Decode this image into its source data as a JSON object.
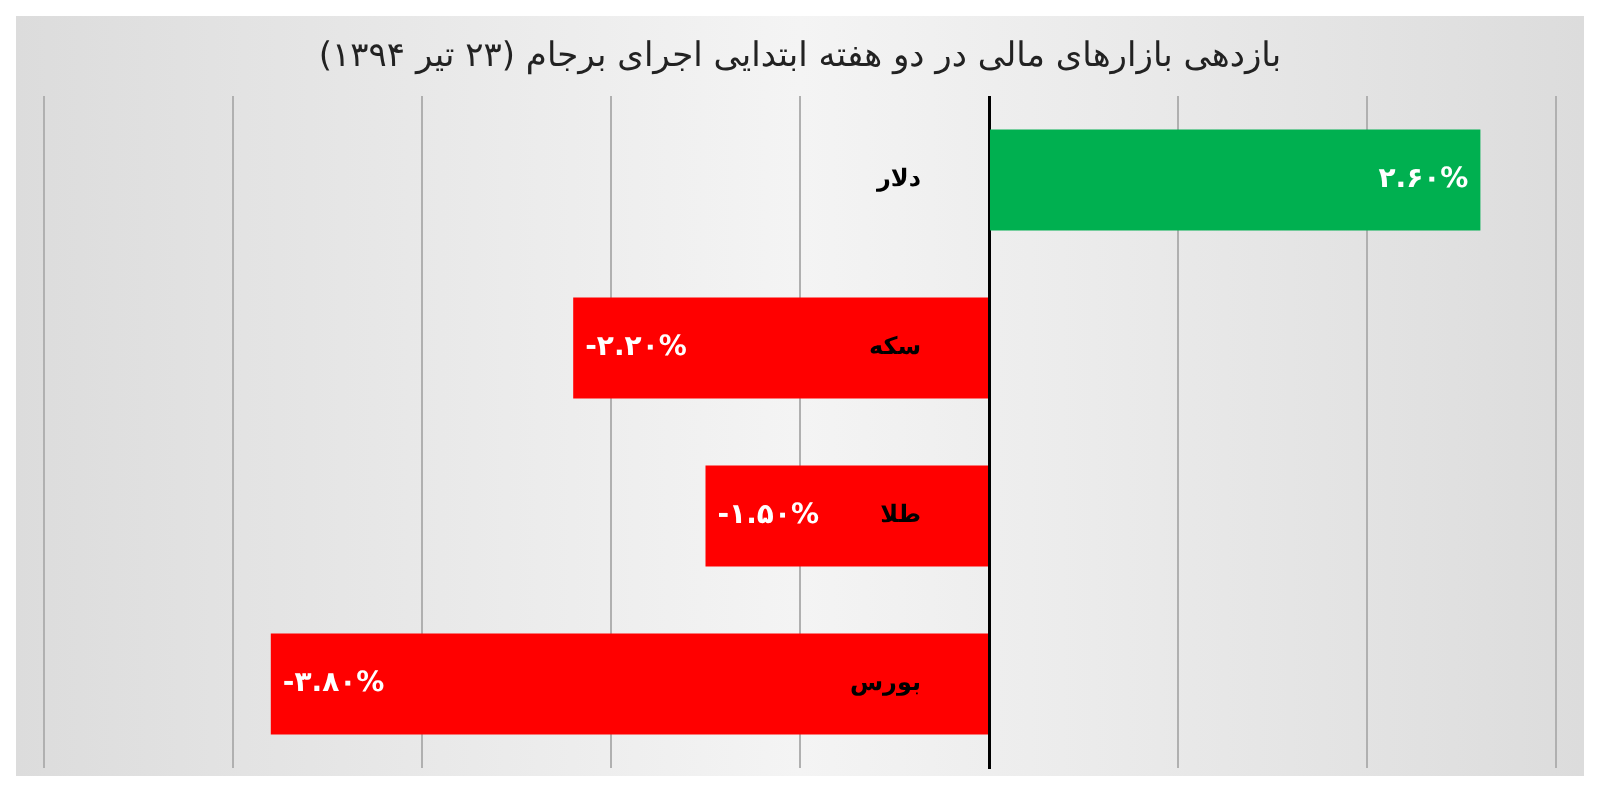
{
  "chart_data": {
    "type": "bar",
    "orientation": "horizontal",
    "title": "بازدهی بازارهای مالی در دو هفته ابتدایی اجرای برجام (۲۳ تیر ۱۳۹۴)",
    "categories": [
      "دلار",
      "سکه",
      "طلا",
      "بورس"
    ],
    "values": [
      2.6,
      -2.2,
      -1.5,
      -3.8
    ],
    "value_labels": [
      "۲.۶۰%",
      "-۲.۲۰%",
      "-۱.۵۰%",
      "-۳.۸۰%"
    ],
    "colors": [
      "#00b050",
      "#ff0000",
      "#ff0000",
      "#ff0000"
    ],
    "xlim": [
      -5,
      3
    ],
    "xticks": [
      {
        "value": -5,
        "label": null
      },
      {
        "value": -4,
        "label": null
      },
      {
        "value": -3,
        "label": null
      },
      {
        "value": -2,
        "label": null
      },
      {
        "value": -1,
        "label": null
      },
      {
        "value": 0,
        "label": null
      },
      {
        "value": 1,
        "label": null
      },
      {
        "value": 2,
        "label": null
      },
      {
        "value": 3,
        "label": null
      }
    ],
    "tick_labels": "y",
    "grid": "x",
    "legend": false
  }
}
